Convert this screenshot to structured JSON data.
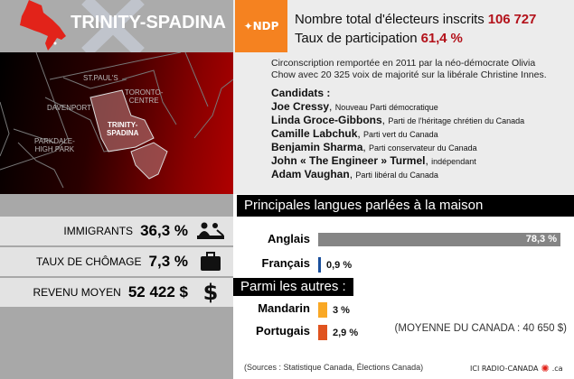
{
  "riding": "TRINITY-SPADINA",
  "map_labels": {
    "st_pauls": "ST.PAUL'S",
    "toronto_centre": "TORONTO-\nCENTRE",
    "davenport": "DAVENPORT",
    "trinity_spadina": "TRINITY-\nSPADINA",
    "parkdale": "PARKDALE-\nHIGH PARK"
  },
  "party_logo": "NDP",
  "voters_label": "Nombre total d'électeurs inscrits",
  "voters_value": "106 727",
  "turnout_label": "Taux de participation",
  "turnout_value": "61,4 %",
  "description": "Circonscription remportée en 2011 par la néo-démocrate Olivia Chow avec 20 325 voix de majorité sur la libérale Christine Innes.",
  "candidates_title": "Candidats :",
  "candidates": [
    {
      "name": "Joe Cressy",
      "party": "Nouveau Parti démocratique"
    },
    {
      "name": "Linda Groce-Gibbons",
      "party": "Parti de l'héritage chrétien du Canada"
    },
    {
      "name": "Camille Labchuk",
      "party": "Parti vert du Canada"
    },
    {
      "name": "Benjamin Sharma",
      "party": "Parti conservateur du Canada"
    },
    {
      "name": "John « The Engineer »  Turmel",
      "party": "indépendant"
    },
    {
      "name": "Adam Vaughan",
      "party": "Parti libéral du Canada"
    }
  ],
  "stats": [
    {
      "label": "IMMIGRANTS",
      "value": "36,3 %",
      "icon": "immigration-desk-icon"
    },
    {
      "label": "TAUX DE CHÔMAGE",
      "value": "7,3 %",
      "icon": "briefcase-icon"
    },
    {
      "label": "REVENU MOYEN",
      "value": "52 422 $",
      "icon": "dollar-icon"
    }
  ],
  "canada_average": "(MOYENNE DU CANADA : 40 650 $)",
  "languages_title": "Principales langues parlées à la maison",
  "others_title": "Parmi les autres :",
  "languages": [
    {
      "name": "Anglais",
      "label": "78,3 %",
      "value": 78.3,
      "color": "#858585"
    },
    {
      "name": "Français",
      "label": "0,9 %",
      "value": 0.9,
      "color": "#1a4f9c"
    },
    {
      "name": "Mandarin",
      "label": "3 %",
      "value": 3,
      "color": "#f9a825"
    },
    {
      "name": "Portugais",
      "label": "2,9 %",
      "value": 2.9,
      "color": "#e0531f"
    }
  ],
  "sources": "(Sources : Statistique Canada, Élections Canada)",
  "brand": "ICI RADIO-CANADA",
  "brand_suffix": ".ca"
}
